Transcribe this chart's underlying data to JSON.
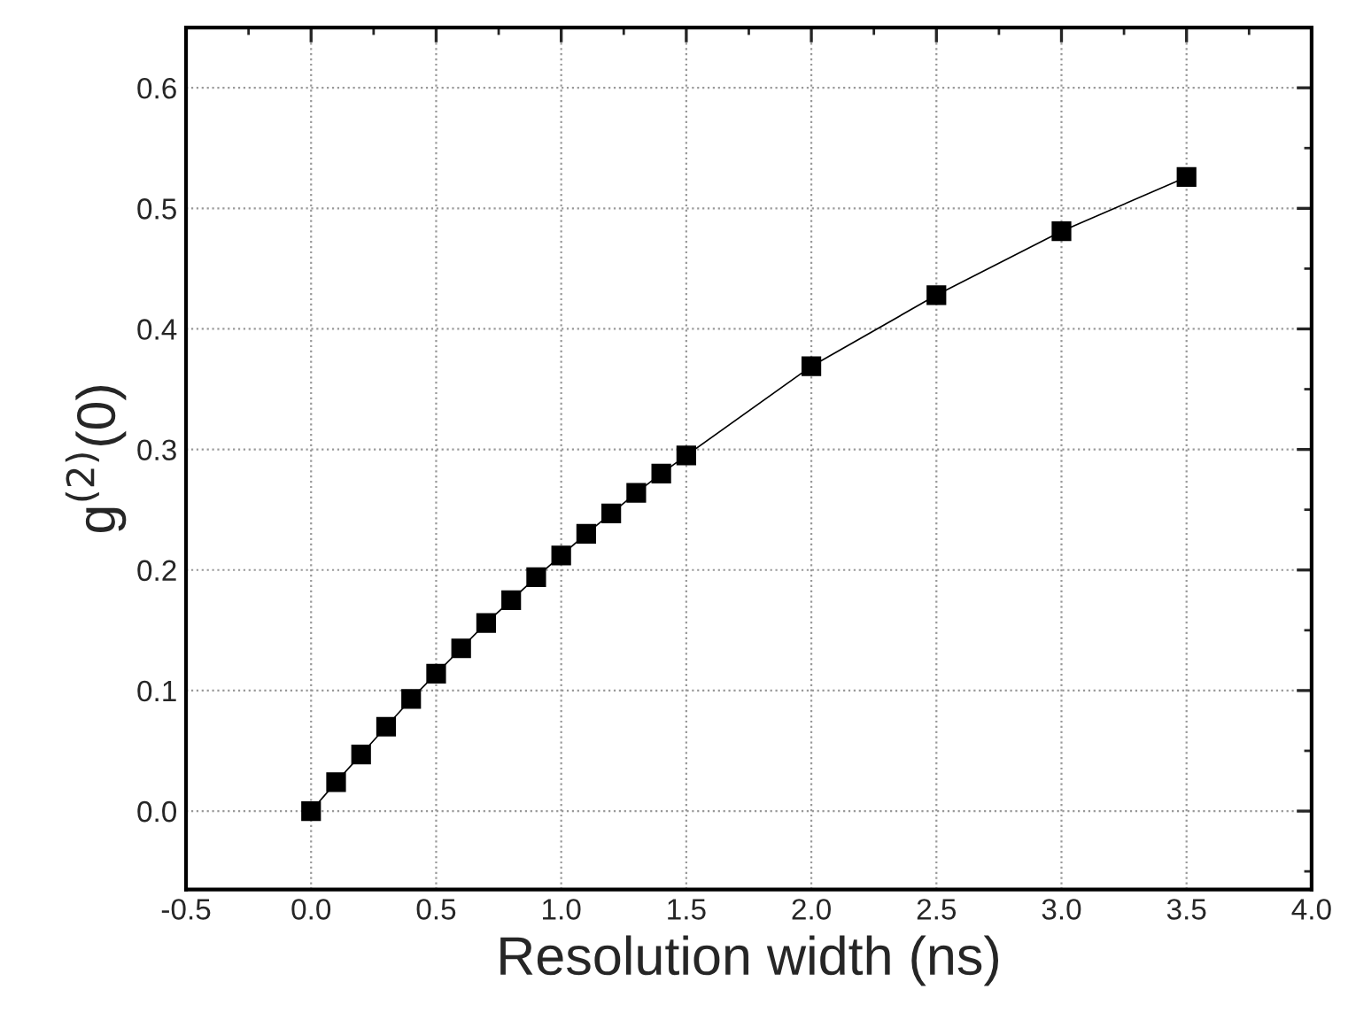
{
  "chart_data": {
    "type": "line",
    "xlabel": "Resolution width (ns)",
    "ylabel": "g$^{(2)}$(0)",
    "x": [
      0.0,
      0.1,
      0.2,
      0.3,
      0.4,
      0.5,
      0.6,
      0.7,
      0.8,
      0.9,
      1.0,
      1.1,
      1.2,
      1.3,
      1.4,
      1.5,
      2.0,
      2.5,
      3.0,
      3.5
    ],
    "series": [
      {
        "color": "#000000",
        "values": [
          0.0,
          0.024,
          0.047,
          0.07,
          0.093,
          0.114,
          0.135,
          0.156,
          0.175,
          0.194,
          0.212,
          0.23,
          0.247,
          0.264,
          0.28,
          0.295,
          0.369,
          0.428,
          0.481,
          0.526
        ]
      }
    ],
    "xlim": [
      -0.5,
      4.0
    ],
    "xticks": [
      -0.5,
      {
        "value": 0,
        "label": "0.0"
      },
      0.5,
      {
        "value": 1,
        "label": "1.0"
      },
      1.5,
      {
        "value": 2,
        "label": "2.0"
      },
      2.5,
      {
        "value": 3,
        "label": "3.0"
      },
      3.5,
      {
        "value": 4,
        "label": "4.0"
      }
    ],
    "ylim": [
      -0.065,
      0.65
    ],
    "yticks": [
      {
        "value": 0,
        "label": "0.0"
      },
      0.1,
      0.2,
      0.3,
      0.4,
      0.5,
      0.6
    ],
    "grid": true,
    "marker": "square",
    "line_style": "solid",
    "legend": false
  }
}
